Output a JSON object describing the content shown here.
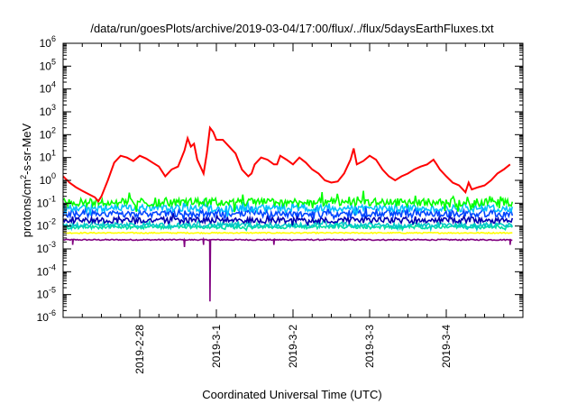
{
  "chart_data": {
    "type": "line",
    "title": "/data/run/goesPlots/archive/2019-03-04/17:00/flux/../flux/5daysEarthFluxes.txt",
    "xlabel": "Coordinated Universal Time (UTC)",
    "ylabel_parts": [
      "protons/cm",
      "2",
      "-s-sr-MeV"
    ],
    "yscale": "log",
    "ylim": [
      1e-06,
      1000000.0
    ],
    "y_ticks": [
      {
        "exp": "-6",
        "value": 1e-06
      },
      {
        "exp": "-5",
        "value": 1e-05
      },
      {
        "exp": "-4",
        "value": 0.0001
      },
      {
        "exp": "-3",
        "value": 0.001
      },
      {
        "exp": "-2",
        "value": 0.01
      },
      {
        "exp": "-1",
        "value": 0.1
      },
      {
        "exp": "0",
        "value": 1
      },
      {
        "exp": "1",
        "value": 10
      },
      {
        "exp": "2",
        "value": 100
      },
      {
        "exp": "3",
        "value": 1000
      },
      {
        "exp": "4",
        "value": 10000
      },
      {
        "exp": "5",
        "value": 100000
      },
      {
        "exp": "6",
        "value": 1000000
      }
    ],
    "xlim": [
      "2019-02-27",
      "2019-03-05"
    ],
    "x_ticks": [
      "2019-2-28",
      "2019-3-1",
      "2019-3-2",
      "2019-3-3",
      "2019-3-4"
    ],
    "grid": false,
    "series": [
      {
        "color": "#ff0000",
        "values": [
          [
            "2019-02-27T00:00",
            1.5
          ],
          [
            "2019-02-27T02:00",
            0.8
          ],
          [
            "2019-02-27T04:00",
            0.5
          ],
          [
            "2019-02-27T06:00",
            0.35
          ],
          [
            "2019-02-27T08:00",
            0.25
          ],
          [
            "2019-02-27T10:00",
            0.18
          ],
          [
            "2019-02-27T11:00",
            0.12
          ],
          [
            "2019-02-27T12:00",
            0.2
          ],
          [
            "2019-02-27T14:00",
            1.0
          ],
          [
            "2019-02-27T16:00",
            6
          ],
          [
            "2019-02-27T18:00",
            12
          ],
          [
            "2019-02-27T20:00",
            10
          ],
          [
            "2019-02-27T22:00",
            7
          ],
          [
            "2019-02-28T00:00",
            12
          ],
          [
            "2019-02-28T02:00",
            9
          ],
          [
            "2019-02-28T04:00",
            6
          ],
          [
            "2019-02-28T06:00",
            4
          ],
          [
            "2019-02-28T08:00",
            1.5
          ],
          [
            "2019-02-28T10:00",
            3
          ],
          [
            "2019-02-28T12:00",
            4
          ],
          [
            "2019-02-28T14:00",
            20
          ],
          [
            "2019-02-28T15:00",
            70
          ],
          [
            "2019-02-28T16:00",
            30
          ],
          [
            "2019-02-28T17:00",
            40
          ],
          [
            "2019-02-28T18:00",
            8
          ],
          [
            "2019-02-28T19:00",
            4
          ],
          [
            "2019-02-28T20:00",
            2
          ],
          [
            "2019-02-28T21:00",
            15
          ],
          [
            "2019-02-28T22:00",
            200
          ],
          [
            "2019-02-28T23:00",
            130
          ],
          [
            "2019-03-01T00:00",
            60
          ],
          [
            "2019-03-01T02:00",
            60
          ],
          [
            "2019-03-01T04:00",
            30
          ],
          [
            "2019-03-01T06:00",
            15
          ],
          [
            "2019-03-01T08:00",
            3
          ],
          [
            "2019-03-01T10:00",
            1.5
          ],
          [
            "2019-03-01T11:00",
            2
          ],
          [
            "2019-03-01T12:00",
            5
          ],
          [
            "2019-03-01T14:00",
            10
          ],
          [
            "2019-03-01T16:00",
            8
          ],
          [
            "2019-03-01T18:00",
            5
          ],
          [
            "2019-03-01T19:00",
            5
          ],
          [
            "2019-03-01T20:00",
            12
          ],
          [
            "2019-03-01T22:00",
            8
          ],
          [
            "2019-03-02T00:00",
            5
          ],
          [
            "2019-03-02T02:00",
            10
          ],
          [
            "2019-03-02T04:00",
            6
          ],
          [
            "2019-03-02T06:00",
            3
          ],
          [
            "2019-03-02T08:00",
            2
          ],
          [
            "2019-03-02T10:00",
            1.0
          ],
          [
            "2019-03-02T12:00",
            0.8
          ],
          [
            "2019-03-02T14:00",
            0.9
          ],
          [
            "2019-03-02T16:00",
            2
          ],
          [
            "2019-03-02T18:00",
            8
          ],
          [
            "2019-03-02T19:00",
            25
          ],
          [
            "2019-03-02T20:00",
            5
          ],
          [
            "2019-03-02T22:00",
            7
          ],
          [
            "2019-03-03T00:00",
            12
          ],
          [
            "2019-03-03T02:00",
            8
          ],
          [
            "2019-03-03T04:00",
            3
          ],
          [
            "2019-03-03T06:00",
            1.5
          ],
          [
            "2019-03-03T08:00",
            1.0
          ],
          [
            "2019-03-03T10:00",
            1.5
          ],
          [
            "2019-03-03T12:00",
            2
          ],
          [
            "2019-03-03T14:00",
            3
          ],
          [
            "2019-03-03T16:00",
            4
          ],
          [
            "2019-03-03T18:00",
            5
          ],
          [
            "2019-03-03T20:00",
            8
          ],
          [
            "2019-03-03T21:00",
            5
          ],
          [
            "2019-03-03T22:00",
            3
          ],
          [
            "2019-03-04T00:00",
            1.5
          ],
          [
            "2019-03-04T02:00",
            0.8
          ],
          [
            "2019-03-04T04:00",
            0.6
          ],
          [
            "2019-03-04T06:00",
            0.3
          ],
          [
            "2019-03-04T07:00",
            0.8
          ],
          [
            "2019-03-04T08:00",
            0.4
          ],
          [
            "2019-03-04T10:00",
            0.5
          ],
          [
            "2019-03-04T12:00",
            0.6
          ],
          [
            "2019-03-04T14:00",
            1.0
          ],
          [
            "2019-03-04T16:00",
            2
          ],
          [
            "2019-03-04T18:00",
            3
          ],
          [
            "2019-03-04T20:00",
            5
          ]
        ]
      },
      {
        "color": "#00ff00",
        "base": 0.11,
        "spread": 0.35,
        "spikes": 1.0
      },
      {
        "color": "#00bfff",
        "base": 0.06,
        "spread": 0.3,
        "spikes": 0.8
      },
      {
        "color": "#0044ff",
        "base": 0.035,
        "spread": 0.3,
        "spikes": 0.6
      },
      {
        "color": "#0000b0",
        "base": 0.018,
        "spread": 0.25,
        "spikes": 0.5
      },
      {
        "color": "#00c8c8",
        "base": 0.011,
        "spread": 0.2,
        "spikes": 0.4
      },
      {
        "color": "#00e0a0",
        "base": 0.009,
        "spread": 0.15,
        "spikes": 0.3
      },
      {
        "color": "#ffff00",
        "base": 0.005,
        "spread": 0.05,
        "spikes": 0.0
      },
      {
        "color": "#800080",
        "base": 0.0025,
        "spread": 0.05,
        "spikes": 0.0,
        "dips": [
          [
            "2019-02-27T03:00",
            0.0015
          ],
          [
            "2019-02-28T14:00",
            0.0012
          ],
          [
            "2019-02-28T20:00",
            0.0015
          ],
          [
            "2019-02-28T22:00",
            5e-06
          ],
          [
            "2019-03-01T18:00",
            0.0015
          ],
          [
            "2019-03-04T20:00",
            0.0015
          ]
        ]
      }
    ]
  }
}
